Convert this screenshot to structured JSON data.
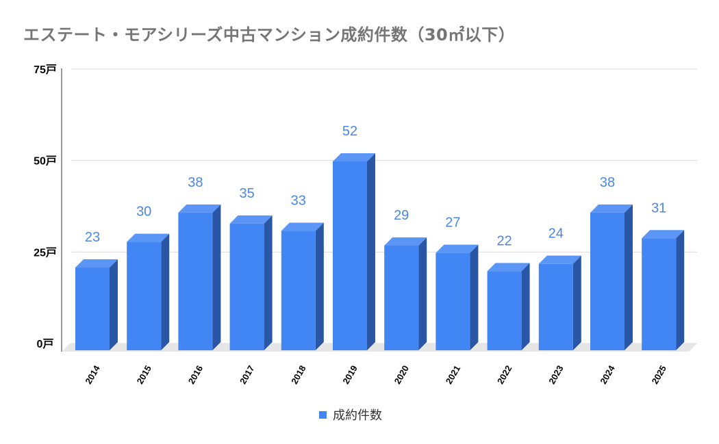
{
  "chart_data": {
    "type": "bar",
    "title": "エステート・モアシリーズ中古マンション成約件数（30㎡以下）",
    "categories": [
      "2014",
      "2015",
      "2016",
      "2017",
      "2018",
      "2019",
      "2020",
      "2021",
      "2022",
      "2023",
      "2024",
      "2025"
    ],
    "series": [
      {
        "name": "成約件数",
        "values": [
          23,
          30,
          38,
          35,
          33,
          52,
          29,
          27,
          22,
          24,
          38,
          31
        ]
      }
    ],
    "data_labels": [
      "23",
      "30",
      "38",
      "35",
      "33",
      "52",
      "29",
      "27",
      "22",
      "24",
      "38",
      "31"
    ],
    "yticks": [
      0,
      25,
      50,
      75
    ],
    "ytick_labels": [
      "0戸",
      "25戸",
      "50戸",
      "75戸"
    ],
    "ylim": [
      0,
      75
    ],
    "grid": true,
    "legend_position": "bottom",
    "colors": {
      "bar_front": "#4285f4",
      "bar_side": "#2a56a6",
      "bar_top": "#5b95f5",
      "label": "#4a86e8",
      "grid": "#d9d9d9"
    }
  }
}
